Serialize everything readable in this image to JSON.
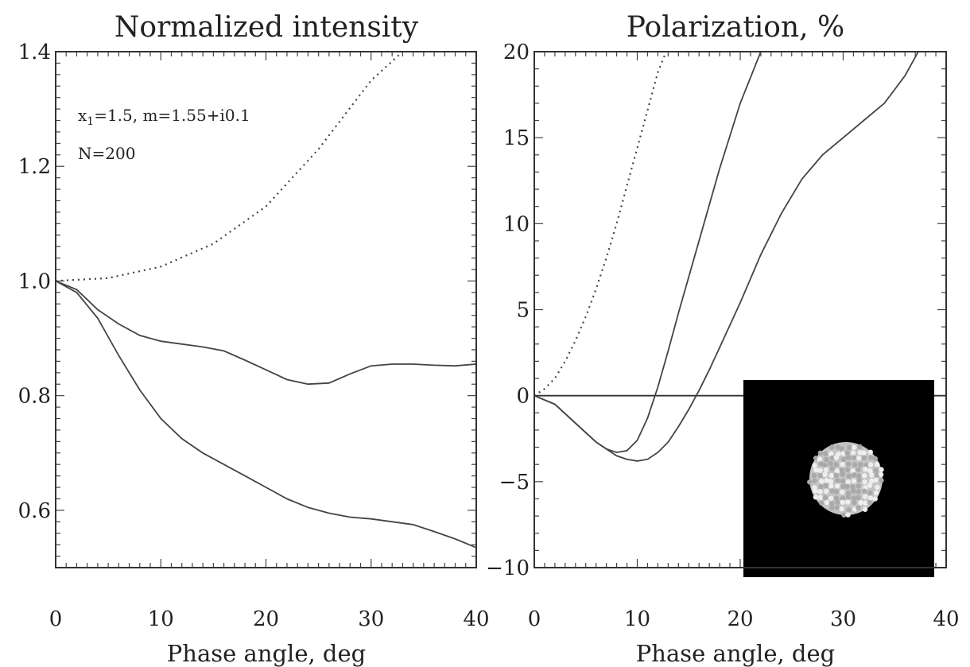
{
  "chart_data": [
    {
      "type": "line",
      "title": "Normalized intensity",
      "xlabel": "Phase angle, deg",
      "ylabel": "",
      "xlim": [
        0,
        40
      ],
      "ylim": [
        0.5,
        1.4
      ],
      "xticks": [
        "0",
        "10",
        "20",
        "30",
        "40"
      ],
      "yticks": [
        "0.6",
        "0.8",
        "1.0",
        "1.2",
        "1.4"
      ],
      "annotations": [
        "x",
        "1",
        "=1.5, m=1.55+i0.1",
        "N=200"
      ],
      "series": [
        {
          "style": "dotted",
          "x": [
            0,
            5,
            10,
            15,
            20,
            25,
            30,
            33
          ],
          "y": [
            1.0,
            1.005,
            1.025,
            1.065,
            1.13,
            1.23,
            1.35,
            1.4
          ]
        },
        {
          "style": "solid",
          "x": [
            0,
            2,
            4,
            6,
            8,
            10,
            12,
            14,
            16,
            18,
            20,
            22,
            24,
            26,
            28,
            30,
            32,
            34,
            36,
            38,
            40
          ],
          "y": [
            1.0,
            0.985,
            0.95,
            0.925,
            0.905,
            0.895,
            0.89,
            0.885,
            0.878,
            0.862,
            0.845,
            0.828,
            0.82,
            0.822,
            0.838,
            0.852,
            0.855,
            0.855,
            0.853,
            0.852,
            0.855
          ]
        },
        {
          "style": "solid",
          "x": [
            0,
            2,
            4,
            6,
            8,
            10,
            12,
            14,
            16,
            18,
            20,
            22,
            24,
            26,
            28,
            30,
            32,
            34,
            36,
            38,
            40
          ],
          "y": [
            1.0,
            0.98,
            0.935,
            0.87,
            0.81,
            0.76,
            0.725,
            0.7,
            0.68,
            0.66,
            0.64,
            0.62,
            0.605,
            0.595,
            0.588,
            0.585,
            0.58,
            0.575,
            0.563,
            0.55,
            0.535
          ]
        }
      ]
    },
    {
      "type": "line",
      "title": "Polarization, %",
      "xlabel": "Phase angle, deg",
      "ylabel": "",
      "xlim": [
        0,
        40
      ],
      "ylim": [
        -10,
        20
      ],
      "xticks": [
        "0",
        "10",
        "20",
        "30",
        "40"
      ],
      "yticks": [
        "−10",
        "−5",
        "0",
        "5",
        "10",
        "15",
        "20"
      ],
      "zero_line": true,
      "inset": "black-square-with-gray-particle-aggregate",
      "series": [
        {
          "style": "dotted",
          "x": [
            0,
            1,
            2,
            3,
            4,
            5,
            6,
            7,
            8,
            9,
            10,
            11,
            12,
            12.8
          ],
          "y": [
            0,
            0.4,
            1.0,
            2.0,
            3.2,
            4.6,
            6.2,
            8.0,
            10.0,
            12.2,
            14.4,
            16.6,
            18.8,
            20
          ]
        },
        {
          "style": "solid",
          "x": [
            0,
            2,
            4,
            6,
            7,
            8,
            9,
            10,
            11,
            12,
            13,
            14,
            16,
            18,
            20,
            22
          ],
          "y": [
            0,
            -0.5,
            -1.6,
            -2.7,
            -3.1,
            -3.3,
            -3.2,
            -2.6,
            -1.3,
            0.5,
            2.6,
            4.8,
            9.0,
            13.2,
            17.0,
            20
          ]
        },
        {
          "style": "solid",
          "x": [
            0,
            2,
            4,
            6,
            7,
            8,
            9,
            10,
            11,
            12,
            13,
            14,
            15,
            16,
            17,
            18,
            20,
            22,
            24,
            26,
            28,
            30,
            32,
            34,
            36,
            37.3
          ],
          "y": [
            0,
            -0.5,
            -1.6,
            -2.7,
            -3.1,
            -3.5,
            -3.7,
            -3.8,
            -3.7,
            -3.3,
            -2.7,
            -1.8,
            -0.8,
            0.3,
            1.5,
            2.8,
            5.4,
            8.2,
            10.6,
            12.6,
            14.0,
            15.0,
            16.0,
            17.0,
            18.6,
            20
          ]
        }
      ]
    }
  ]
}
